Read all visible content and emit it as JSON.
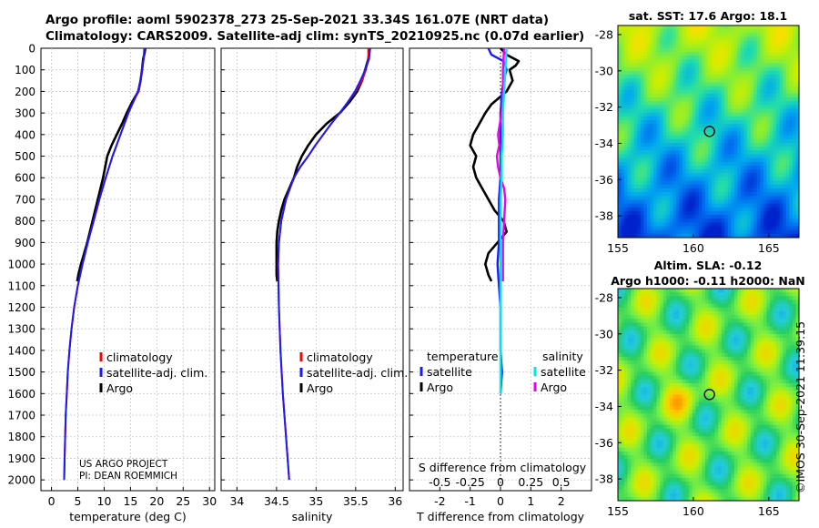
{
  "header": {
    "title_line1": "Argo profile: aoml 5902378_273 25-Sep-2021 33.34S 161.07E (NRT data)",
    "title_line2": "Climatology: CARS2009. Satellite-adj clim: synTS_20210925.nc (0.07d earlier)"
  },
  "colors": {
    "climatology": "#ff0000",
    "satellite_adj": "#1a1aff",
    "argo": "#000000",
    "satellite_s": "#00e5ee",
    "argo_s": "#ee00ee"
  },
  "chart_data": [
    {
      "type": "line",
      "id": "temperature",
      "xlabel": "temperature (deg C)",
      "ylabel": "",
      "xlim": [
        -2,
        31
      ],
      "ylim": [
        2050,
        0
      ],
      "xticks": [
        "0",
        "5",
        "10",
        "15",
        "20",
        "25",
        "30"
      ],
      "yticks": [
        "0",
        "100",
        "200",
        "300",
        "400",
        "500",
        "600",
        "700",
        "800",
        "900",
        "1000",
        "1100",
        "1200",
        "1300",
        "1400",
        "1500",
        "1600",
        "1700",
        "1800",
        "1900",
        "2000"
      ],
      "legend": [
        "climatology",
        "satellite-adj. clim.",
        "Argo"
      ],
      "annotation": [
        "US ARGO PROJECT",
        "PI: DEAN ROEMMICH"
      ],
      "series": [
        {
          "name": "climatology",
          "depth": [
            0,
            50,
            100,
            150,
            200,
            250,
            300,
            400,
            500,
            600,
            700,
            800,
            900,
            1000,
            1100,
            1200,
            1300,
            1400,
            1500,
            1600,
            1700,
            1800,
            1900,
            2000
          ],
          "values": [
            17.6,
            17.5,
            17.2,
            16.9,
            16.5,
            15.5,
            14.6,
            13.1,
            11.6,
            10.3,
            9.1,
            8.0,
            6.9,
            5.9,
            5.0,
            4.3,
            3.8,
            3.4,
            3.1,
            2.9,
            2.7,
            2.6,
            2.5,
            2.4
          ]
        },
        {
          "name": "satellite-adj. clim.",
          "depth": [
            0,
            50,
            100,
            150,
            200,
            250,
            300,
            400,
            500,
            600,
            700,
            800,
            900,
            1000,
            1100,
            1200,
            1300,
            1400,
            1500,
            1600,
            1700,
            1800,
            1900,
            2000
          ],
          "values": [
            17.7,
            17.5,
            17.2,
            16.9,
            16.4,
            15.5,
            14.6,
            13.1,
            11.6,
            10.3,
            9.1,
            8.0,
            6.9,
            5.9,
            5.0,
            4.3,
            3.8,
            3.4,
            3.1,
            2.9,
            2.7,
            2.6,
            2.5,
            2.4
          ]
        },
        {
          "name": "Argo",
          "depth": [
            0,
            20,
            50,
            100,
            150,
            200,
            250,
            300,
            350,
            400,
            450,
            500,
            550,
            600,
            650,
            700,
            750,
            800,
            850,
            900,
            950,
            1000,
            1050,
            1080
          ],
          "values": [
            17.8,
            17.7,
            17.4,
            17.2,
            16.9,
            16.5,
            15.3,
            14.3,
            13.4,
            12.4,
            11.4,
            10.6,
            10.2,
            9.8,
            9.3,
            8.8,
            8.3,
            7.8,
            7.3,
            6.8,
            6.2,
            5.6,
            5.1,
            4.9
          ]
        }
      ]
    },
    {
      "type": "line",
      "id": "salinity",
      "xlabel": "salinity",
      "ylabel": "",
      "xlim": [
        33.8,
        36.1
      ],
      "ylim": [
        2050,
        0
      ],
      "xticks": [
        "34",
        "34.5",
        "35",
        "35.5",
        "36"
      ],
      "legend": [
        "climatology",
        "satellite-adj. clim.",
        "Argo"
      ],
      "series": [
        {
          "name": "climatology",
          "depth": [
            0,
            50,
            100,
            150,
            200,
            250,
            300,
            350,
            400,
            450,
            500,
            550,
            600,
            700,
            800,
            900,
            1000,
            1200,
            1400,
            1600,
            1800,
            2000
          ],
          "values": [
            35.66,
            35.66,
            35.63,
            35.58,
            35.5,
            35.4,
            35.3,
            35.19,
            35.09,
            34.99,
            34.9,
            34.8,
            34.72,
            34.62,
            34.56,
            34.53,
            34.52,
            34.53,
            34.55,
            34.58,
            34.62,
            34.66
          ]
        },
        {
          "name": "satellite-adj. clim.",
          "depth": [
            0,
            50,
            100,
            150,
            200,
            250,
            300,
            350,
            400,
            450,
            500,
            550,
            600,
            700,
            800,
            900,
            1000,
            1200,
            1400,
            1600,
            1800,
            2000
          ],
          "values": [
            35.68,
            35.67,
            35.62,
            35.56,
            35.49,
            35.4,
            35.3,
            35.19,
            35.09,
            34.99,
            34.9,
            34.8,
            34.72,
            34.62,
            34.56,
            34.53,
            34.52,
            34.53,
            34.55,
            34.58,
            34.62,
            34.66
          ]
        },
        {
          "name": "Argo",
          "depth": [
            0,
            50,
            100,
            150,
            200,
            250,
            300,
            350,
            400,
            450,
            500,
            550,
            600,
            650,
            700,
            750,
            800,
            850,
            900,
            950,
            1000,
            1050,
            1080
          ],
          "values": [
            35.68,
            35.66,
            35.62,
            35.58,
            35.52,
            35.42,
            35.3,
            35.13,
            35.0,
            34.9,
            34.82,
            34.76,
            34.72,
            34.66,
            34.6,
            34.56,
            34.53,
            34.51,
            34.5,
            34.5,
            34.5,
            34.5,
            34.51
          ]
        }
      ]
    },
    {
      "type": "line",
      "id": "differences",
      "xlabel": "T difference from climatology",
      "xlabel2": "S difference from climatology",
      "xlim": [
        -3,
        3
      ],
      "ylim": [
        2050,
        0
      ],
      "xticks": [
        "-2",
        "-1",
        "0",
        "1",
        "2"
      ],
      "xticks_s": [
        "-0.5",
        "-0.25",
        "0",
        "0.25",
        "0.5"
      ],
      "legend_t_title": "temperature",
      "legend_s_title": "salinity",
      "legend_t": [
        "satellite",
        "Argo"
      ],
      "legend_s": [
        "satellite",
        "Argo"
      ],
      "series": [
        {
          "name": "T satellite",
          "depth": [
            0,
            30,
            60,
            100,
            150,
            200,
            300,
            400,
            500,
            600,
            700,
            800,
            900,
            1000,
            1100,
            1200,
            1300,
            1400,
            1500,
            1600
          ],
          "values": [
            -0.4,
            -0.3,
            0.1,
            0.2,
            0.1,
            0.05,
            0,
            0,
            0,
            0,
            -0.05,
            -0.05,
            -0.05,
            -0.1,
            -0.05,
            0,
            0,
            0,
            0.05,
            0
          ]
        },
        {
          "name": "T Argo",
          "depth": [
            0,
            30,
            60,
            80,
            100,
            150,
            200,
            260,
            300,
            350,
            400,
            450,
            500,
            550,
            600,
            650,
            700,
            750,
            800,
            850,
            900,
            950,
            1000,
            1050,
            1080
          ],
          "values": [
            0,
            0.2,
            0.6,
            0.5,
            0.3,
            0.4,
            0.2,
            -0.3,
            -0.5,
            -0.7,
            -0.9,
            -1.0,
            -0.8,
            -0.9,
            -0.8,
            -0.6,
            -0.4,
            -0.2,
            0.1,
            0.2,
            -0.1,
            -0.4,
            -0.5,
            -0.4,
            -0.3
          ]
        },
        {
          "name": "S satellite",
          "depth": [
            0,
            100,
            200,
            300,
            400,
            500,
            600,
            700,
            800,
            900,
            1000,
            1100,
            1200,
            1300,
            1400,
            1500,
            1600
          ],
          "values": [
            0.05,
            0.04,
            0.03,
            0.02,
            0.02,
            0.01,
            0.01,
            0,
            0,
            0,
            0,
            0,
            0,
            0,
            0,
            0,
            0
          ]
        },
        {
          "name": "S Argo",
          "depth": [
            0,
            100,
            200,
            300,
            400,
            450,
            500,
            550,
            600,
            650,
            700,
            800,
            900,
            1000,
            1080
          ],
          "values": [
            0.03,
            0.02,
            0.02,
            0.01,
            -0.02,
            -0.01,
            -0.03,
            -0.02,
            0,
            0.03,
            0.04,
            0.03,
            0.02,
            0.02,
            0.02
          ]
        }
      ]
    },
    {
      "type": "heatmap",
      "id": "sst-map",
      "title": "sat. SST: 17.6 Argo: 18.1",
      "xticks": [
        "155",
        "160",
        "165"
      ],
      "yticks": [
        "-28",
        "-30",
        "-32",
        "-34",
        "-36",
        "-38"
      ],
      "xlim": [
        155,
        167
      ],
      "ylim": [
        -39.2,
        -27.5
      ],
      "marker": [
        161.07,
        -33.34
      ],
      "colorscale": [
        "#0022cc",
        "#0066ee",
        "#00aaee",
        "#22ddaa",
        "#88ee33",
        "#ccee00",
        "#ffdd00",
        "#ff8800"
      ]
    },
    {
      "type": "heatmap",
      "id": "sla-map",
      "title": "Altim. SLA: -0.12",
      "subtitle": "Argo h1000: -0.11 h2000: NaN",
      "xticks": [
        "155",
        "160",
        "165"
      ],
      "yticks": [
        "-28",
        "-30",
        "-32",
        "-34",
        "-36",
        "-38"
      ],
      "xlim": [
        155,
        167
      ],
      "ylim": [
        -39.2,
        -27.5
      ],
      "marker": [
        161.07,
        -33.34
      ],
      "colorscale": [
        "#0077dd",
        "#22ccdd",
        "#22cc66",
        "#77ee44",
        "#ccee00",
        "#ffcc00",
        "#ff8800"
      ]
    }
  ],
  "footer": {
    "credit": "©IMOS 30-Sep-2021 11:39:15"
  }
}
